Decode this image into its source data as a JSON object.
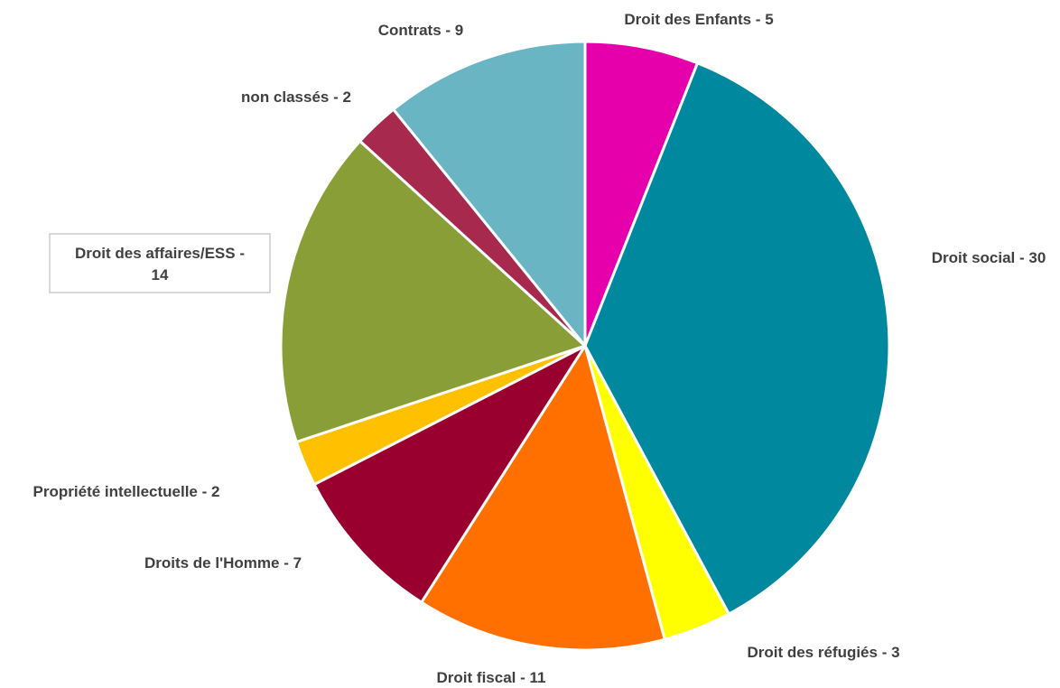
{
  "chart_data": {
    "type": "pie",
    "start_angle_deg": 0,
    "direction": "clockwise",
    "slices": [
      {
        "name": "Droit des Enfants",
        "value": 5,
        "label": "Droit des Enfants - 5",
        "color": "#E600AC"
      },
      {
        "name": "Droit social",
        "value": 30,
        "label": "Droit social - 30",
        "color": "#00889E"
      },
      {
        "name": "Droit des réfugiés",
        "value": 3,
        "label": "Droit des réfugiés - 3",
        "color": "#FFFF00"
      },
      {
        "name": "Droit fiscal",
        "value": 11,
        "label": "Droit fiscal - 11",
        "color": "#FF7000"
      },
      {
        "name": "Droits de l'Homme",
        "value": 7,
        "label": "Droits de l'Homme - 7",
        "color": "#990030"
      },
      {
        "name": "Propriété intellectuelle",
        "value": 2,
        "label": "Propriété intellectuelle - 2",
        "color": "#FFC000"
      },
      {
        "name": "Droit des affaires/ESS",
        "value": 14,
        "label_lines": [
          "Droit des affaires/ESS -",
          "14"
        ],
        "color": "#8A9E38"
      },
      {
        "name": "non classés",
        "value": 2,
        "label": "non classés - 2",
        "color": "#A8294E"
      },
      {
        "name": "Contrats",
        "value": 9,
        "label": "Contrats - 9",
        "color": "#6AB5C3"
      }
    ]
  }
}
